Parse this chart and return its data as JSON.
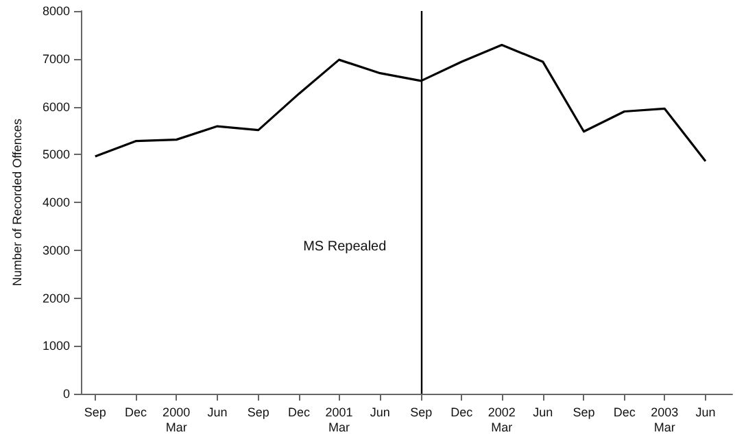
{
  "chart_data": {
    "type": "line",
    "ylabel": "Number of Recorded Offences",
    "x": [
      "1999-09",
      "1999-12",
      "2000-03",
      "2000-06",
      "2000-09",
      "2000-12",
      "2001-03",
      "2001-06",
      "2001-09",
      "2001-12",
      "2002-03",
      "2002-06",
      "2002-09",
      "2002-12",
      "2003-03",
      "2003-06"
    ],
    "xticks": [
      {
        "value": "1999-09",
        "label": "Sep"
      },
      {
        "value": "1999-12",
        "label": "Dec"
      },
      {
        "value": "2000-03",
        "label": "2000\nMar"
      },
      {
        "value": "2000-06",
        "label": "Jun"
      },
      {
        "value": "2000-09",
        "label": "Sep"
      },
      {
        "value": "2000-12",
        "label": "Dec"
      },
      {
        "value": "2001-03",
        "label": "2001\nMar"
      },
      {
        "value": "2001-06",
        "label": "Jun"
      },
      {
        "value": "2001-09",
        "label": "Sep"
      },
      {
        "value": "2001-12",
        "label": "Dec"
      },
      {
        "value": "2002-03",
        "label": "2002\nMar"
      },
      {
        "value": "2002-06",
        "label": "Jun"
      },
      {
        "value": "2002-09",
        "label": "Sep"
      },
      {
        "value": "2002-12",
        "label": "Dec"
      },
      {
        "value": "2003-03",
        "label": "2003\nMar"
      },
      {
        "value": "2003-06",
        "label": "Jun"
      }
    ],
    "series": [
      {
        "color": "#000000",
        "values": [
          4960,
          5280,
          5310,
          5590,
          5510,
          6270,
          6980,
          6700,
          6540,
          6940,
          7290,
          6940,
          5480,
          5900,
          5960,
          4860
        ]
      }
    ],
    "ylim": [
      0,
      8000
    ],
    "yticks": [
      0,
      1000,
      2000,
      3000,
      4000,
      5000,
      6000,
      7000,
      8000
    ],
    "ref_lines": [
      {
        "axis": "x",
        "value": "2001-09",
        "label": "MS Repealed",
        "color": "#000000"
      }
    ],
    "xlim": [
      "1999-07-31",
      "2003-07-31"
    ],
    "grid": false,
    "marker": "none",
    "line_style": "solid"
  }
}
